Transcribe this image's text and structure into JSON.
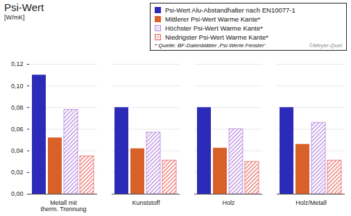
{
  "chart_data": {
    "type": "bar",
    "title": "Psi-Wert",
    "y_label": "[W/mK]",
    "categories": [
      "Metall mit therm. Trennung",
      "Kunststoff",
      "Holz",
      "Holz/Metall"
    ],
    "series": [
      {
        "name": "Psi-Wert Alu-Abstandhalter nach EN10077-1",
        "color": "#2b2bb8",
        "values": [
          0.11,
          0.08,
          0.08,
          0.08
        ]
      },
      {
        "name": "Mittlerer Psi-Wert Warme Kante*",
        "color": "#d8612a",
        "values": [
          0.052,
          0.042,
          0.0425,
          0.046
        ]
      },
      {
        "name": "Höchster Psi-Wert Warme Kante*",
        "color": "#b888e0",
        "line_style": "hatched",
        "values": [
          0.078,
          0.057,
          0.06,
          0.066
        ]
      },
      {
        "name": "Niedrigster Psi-Wert Warme Kante*",
        "color": "#e8706a",
        "line_style": "hatched",
        "values": [
          0.035,
          0.031,
          0.03,
          0.031
        ]
      }
    ],
    "ylim": [
      0,
      0.12
    ],
    "yticks": [
      {
        "value": 0,
        "label": "0,00"
      },
      {
        "value": 0.02,
        "label": "0,02"
      },
      {
        "value": 0.04,
        "label": "0,04"
      },
      {
        "value": 0.06,
        "label": "0,06"
      },
      {
        "value": 0.08,
        "label": "0,08"
      },
      {
        "value": 0.1,
        "label": "0,10"
      },
      {
        "value": 0.12,
        "label": "0,12"
      }
    ],
    "grid": true,
    "legend": "top-right",
    "annotations": [
      "* Quelle: BF-Datenblätter ‚Psi-Werte Fenster‘",
      "©Meyer-Quel"
    ]
  }
}
